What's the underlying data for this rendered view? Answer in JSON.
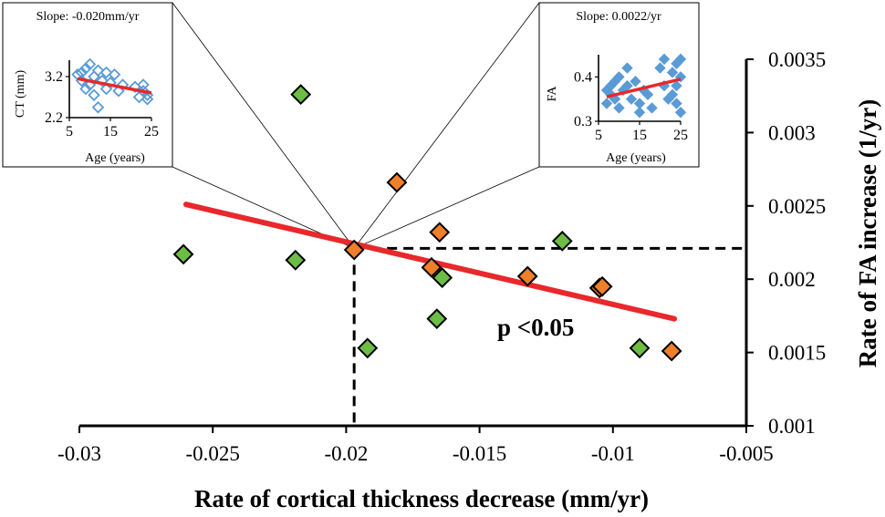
{
  "chart_data": {
    "type": "scatter",
    "xlabel": "Rate of cortical thickness decrease (mm/yr)",
    "ylabel": "Rate of FA increase (1/yr)",
    "xlim": [
      -0.03,
      -0.005
    ],
    "ylim": [
      0.001,
      0.0035
    ],
    "x_ticks": [
      -0.03,
      -0.025,
      -0.02,
      -0.015,
      -0.01,
      -0.005
    ],
    "x_tick_labels": [
      "-0.03",
      "-0.025",
      "-0.02",
      "-0.015",
      "-0.01",
      "-0.005"
    ],
    "y_ticks": [
      0.001,
      0.0015,
      0.002,
      0.0025,
      0.003,
      0.0035
    ],
    "y_tick_labels": [
      "0.001",
      "0.0015",
      "0.002",
      "0.0025",
      "0.003",
      "0.0035"
    ],
    "series": [
      {
        "name": "green",
        "color": "#6cbd45",
        "points": [
          {
            "x": -0.0261,
            "y": 0.00217
          },
          {
            "x": -0.0219,
            "y": 0.00213
          },
          {
            "x": -0.0217,
            "y": 0.00326
          },
          {
            "x": -0.0192,
            "y": 0.00153
          },
          {
            "x": -0.0166,
            "y": 0.00173
          },
          {
            "x": -0.0164,
            "y": 0.00201
          },
          {
            "x": -0.0119,
            "y": 0.00226
          },
          {
            "x": -0.009,
            "y": 0.00153
          }
        ]
      },
      {
        "name": "orange",
        "color": "#f07f2a",
        "points": [
          {
            "x": -0.0197,
            "y": 0.0022
          },
          {
            "x": -0.0181,
            "y": 0.00266
          },
          {
            "x": -0.0165,
            "y": 0.00232
          },
          {
            "x": -0.0168,
            "y": 0.00208
          },
          {
            "x": -0.0132,
            "y": 0.00202
          },
          {
            "x": -0.0105,
            "y": 0.00194
          },
          {
            "x": -0.0104,
            "y": 0.00195
          },
          {
            "x": -0.0078,
            "y": 0.00151
          }
        ]
      }
    ],
    "trendline": {
      "color": "#e8282b",
      "x": [
        -0.026,
        -0.0077
      ],
      "y": [
        0.00251,
        0.00173
      ]
    },
    "reference_point": {
      "x": -0.0197,
      "y": 0.00221
    },
    "annotations": [
      {
        "text": "p <0.05"
      }
    ],
    "insets": [
      {
        "title": "Slope: -0.020mm/yr",
        "xlabel": "Age (years)",
        "ylabel": "CT (mm)",
        "xlim": [
          5,
          25
        ],
        "ylim": [
          2.2,
          3.6
        ],
        "x_ticks": [
          5,
          15,
          25
        ],
        "x_tick_labels": [
          "5",
          "15",
          "25"
        ],
        "y_ticks": [
          2.2,
          3.2
        ],
        "y_tick_labels": [
          "2.2",
          "3.2"
        ],
        "marker_style": "hollow",
        "marker_color": "#5b9bd5",
        "points": [
          {
            "x": 7,
            "y": 3.25
          },
          {
            "x": 8,
            "y": 3.1
          },
          {
            "x": 8,
            "y": 3.3
          },
          {
            "x": 9,
            "y": 3.4
          },
          {
            "x": 9,
            "y": 2.9
          },
          {
            "x": 10,
            "y": 3.5
          },
          {
            "x": 10,
            "y": 3.0
          },
          {
            "x": 11,
            "y": 2.75
          },
          {
            "x": 11,
            "y": 3.2
          },
          {
            "x": 12,
            "y": 2.45
          },
          {
            "x": 12,
            "y": 3.35
          },
          {
            "x": 13,
            "y": 3.1
          },
          {
            "x": 14,
            "y": 2.9
          },
          {
            "x": 14,
            "y": 3.3
          },
          {
            "x": 15,
            "y": 3.05
          },
          {
            "x": 16,
            "y": 3.25
          },
          {
            "x": 17,
            "y": 2.85
          },
          {
            "x": 18,
            "y": 3.0
          },
          {
            "x": 21,
            "y": 2.95
          },
          {
            "x": 22,
            "y": 2.7
          },
          {
            "x": 23,
            "y": 2.85
          },
          {
            "x": 23,
            "y": 3.0
          },
          {
            "x": 24,
            "y": 2.75
          },
          {
            "x": 24,
            "y": 2.65
          }
        ],
        "trendline": {
          "x": [
            7,
            25
          ],
          "y": [
            3.15,
            2.8
          ],
          "color": "#e8282b"
        }
      },
      {
        "title": "Slope: 0.0022/yr",
        "xlabel": "Age (years)",
        "ylabel": "FA",
        "xlim": [
          5,
          25
        ],
        "ylim": [
          0.3,
          0.45
        ],
        "x_ticks": [
          5,
          15,
          25
        ],
        "x_tick_labels": [
          "5",
          "15",
          "25"
        ],
        "y_ticks": [
          0.3,
          0.4
        ],
        "y_tick_labels": [
          "0.3",
          "0.4"
        ],
        "marker_style": "filled",
        "marker_color": "#5b9bd5",
        "points": [
          {
            "x": 7,
            "y": 0.37
          },
          {
            "x": 7,
            "y": 0.34
          },
          {
            "x": 8,
            "y": 0.38
          },
          {
            "x": 8,
            "y": 0.36
          },
          {
            "x": 9,
            "y": 0.39
          },
          {
            "x": 9,
            "y": 0.35
          },
          {
            "x": 10,
            "y": 0.4
          },
          {
            "x": 10,
            "y": 0.33
          },
          {
            "x": 11,
            "y": 0.37
          },
          {
            "x": 12,
            "y": 0.42
          },
          {
            "x": 12,
            "y": 0.38
          },
          {
            "x": 13,
            "y": 0.35
          },
          {
            "x": 14,
            "y": 0.39
          },
          {
            "x": 15,
            "y": 0.34
          },
          {
            "x": 15,
            "y": 0.32
          },
          {
            "x": 16,
            "y": 0.37
          },
          {
            "x": 17,
            "y": 0.36
          },
          {
            "x": 18,
            "y": 0.33
          },
          {
            "x": 20,
            "y": 0.42
          },
          {
            "x": 21,
            "y": 0.44
          },
          {
            "x": 21,
            "y": 0.38
          },
          {
            "x": 22,
            "y": 0.35
          },
          {
            "x": 23,
            "y": 0.41
          },
          {
            "x": 23,
            "y": 0.36
          },
          {
            "x": 24,
            "y": 0.43
          },
          {
            "x": 24,
            "y": 0.38
          },
          {
            "x": 24,
            "y": 0.34
          },
          {
            "x": 25,
            "y": 0.44
          },
          {
            "x": 25,
            "y": 0.4
          },
          {
            "x": 25,
            "y": 0.32
          }
        ],
        "trendline": {
          "x": [
            7,
            25
          ],
          "y": [
            0.355,
            0.395
          ],
          "color": "#e8282b"
        }
      }
    ]
  }
}
